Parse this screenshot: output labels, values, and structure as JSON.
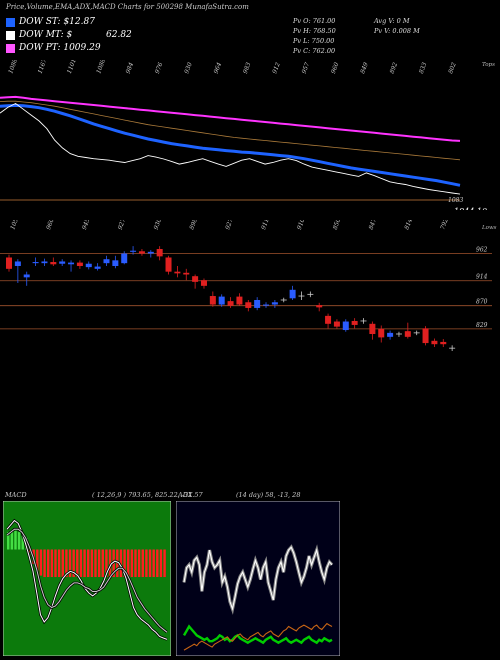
{
  "header": {
    "title": "Price,Volume,EMA,ADX,MACD Charts for 500298 MunafaSutra.com"
  },
  "legend": [
    {
      "label": "DOW ST: $12.87",
      "value": "",
      "color": "#1e63ff"
    },
    {
      "label": "DOW MT: $",
      "value": "62.82",
      "color": "#ffffff"
    },
    {
      "label": "DOW PT: 1009.29",
      "value": "",
      "color": "#ff55ff"
    }
  ],
  "stats": {
    "pv_o": "Pv O: 761.00",
    "pv_h": "Pv H: 768.50",
    "pv_l": "Pv L: 750.00",
    "pv_c": "Pv C: 762.00",
    "avg_v": "Avg V: 0 M",
    "pv_v": "Pv V: 0.008 M"
  },
  "chart_data": [
    {
      "type": "line",
      "name": "EMA panel",
      "side_labels": [
        "Tops",
        "1083",
        "1944.10"
      ],
      "top_labels": [
        "1088",
        "1167",
        "1101",
        "1088",
        "984",
        "976",
        "930",
        "964",
        "983",
        "912",
        "957",
        "960",
        "849",
        "892",
        "833",
        "802"
      ],
      "x": [
        0,
        1,
        2,
        3,
        4,
        5,
        6,
        7,
        8,
        9,
        10,
        11,
        12,
        13,
        14,
        15,
        16,
        17,
        18,
        19,
        20,
        21,
        22,
        23,
        24,
        25,
        26,
        27,
        28,
        29,
        30,
        31,
        32,
        33,
        34,
        35,
        36,
        37,
        38,
        39,
        40,
        41,
        42,
        43,
        44,
        45,
        46,
        47,
        48,
        49,
        50,
        51,
        52,
        53,
        54,
        55,
        56,
        57,
        58,
        59
      ],
      "series": [
        {
          "color": "#ff33ff",
          "values": [
            1120,
            1121,
            1122,
            1120,
            1117,
            1115,
            1113,
            1111,
            1109,
            1107,
            1105,
            1103,
            1101,
            1099,
            1097,
            1095,
            1093,
            1091,
            1089,
            1087,
            1085,
            1083,
            1081,
            1079,
            1077,
            1075,
            1073,
            1071,
            1069,
            1067,
            1065,
            1063,
            1061,
            1059,
            1057,
            1055,
            1053,
            1051,
            1049,
            1047,
            1045,
            1043,
            1041,
            1039,
            1037,
            1035,
            1033,
            1031,
            1029,
            1027,
            1025,
            1023,
            1021,
            1019,
            1017,
            1015,
            1013,
            1011,
            1009,
            1008
          ]
        },
        {
          "color": "#1e63ff",
          "values": [
            1098,
            1099,
            1100,
            1099,
            1097,
            1094,
            1090,
            1085,
            1079,
            1073,
            1066,
            1059,
            1052,
            1046,
            1040,
            1034,
            1028,
            1023,
            1018,
            1013,
            1009,
            1005,
            1001,
            998,
            995,
            992,
            989,
            987,
            985,
            983,
            981,
            979,
            978,
            976,
            974,
            972,
            970,
            968,
            965,
            962,
            958,
            954,
            950,
            946,
            942,
            938,
            935,
            932,
            929,
            926,
            923,
            920,
            917,
            914,
            911,
            908,
            905,
            901,
            897,
            893
          ]
        },
        {
          "color": "#ffffff",
          "values": [
            1080,
            1095,
            1105,
            1090,
            1075,
            1060,
            1040,
            1010,
            990,
            975,
            968,
            965,
            962,
            960,
            958,
            955,
            952,
            957,
            962,
            970,
            966,
            961,
            955,
            948,
            952,
            957,
            962,
            955,
            948,
            942,
            950,
            958,
            962,
            955,
            948,
            952,
            958,
            962,
            957,
            948,
            940,
            936,
            932,
            928,
            924,
            920,
            916,
            925,
            918,
            910,
            902,
            898,
            895,
            890,
            886,
            882,
            879,
            876,
            873,
            870
          ]
        },
        {
          "color": "#aa7a3a",
          "values": [
            1110,
            1111,
            1111,
            1109,
            1107,
            1104,
            1101,
            1098,
            1094,
            1090,
            1086,
            1082,
            1078,
            1074,
            1070,
            1066,
            1062,
            1058,
            1054,
            1050,
            1047,
            1044,
            1041,
            1038,
            1035,
            1032,
            1029,
            1026,
            1023,
            1020,
            1017,
            1015,
            1013,
            1011,
            1009,
            1007,
            1005,
            1003,
            1001,
            999,
            997,
            995,
            993,
            991,
            989,
            987,
            985,
            983,
            981,
            979,
            977,
            975,
            973,
            971,
            969,
            967,
            965,
            963,
            961,
            959
          ]
        }
      ]
    },
    {
      "type": "candlestick",
      "name": "Price panel",
      "side_labels": [
        "Lows"
      ],
      "top_labels": [
        "1052",
        "960",
        "945",
        "927",
        "930",
        "898",
        "927",
        "911",
        "910",
        "850",
        "847",
        "814",
        "792"
      ],
      "levels": [
        962,
        914,
        870,
        829
      ],
      "ylim": [
        760,
        1000
      ],
      "candles": [
        {
          "o": 955,
          "c": 935,
          "h": 960,
          "l": 930
        },
        {
          "o": 940,
          "c": 948,
          "h": 952,
          "l": 910
        },
        {
          "o": 920,
          "c": 925,
          "h": 930,
          "l": 905
        },
        {
          "o": 945,
          "c": 947,
          "h": 955,
          "l": 940
        },
        {
          "o": 945,
          "c": 948,
          "h": 953,
          "l": 940
        },
        {
          "o": 947,
          "c": 943,
          "h": 955,
          "l": 940
        },
        {
          "o": 944,
          "c": 948,
          "h": 952,
          "l": 940
        },
        {
          "o": 943,
          "c": 946,
          "h": 950,
          "l": 930
        },
        {
          "o": 946,
          "c": 940,
          "h": 950,
          "l": 935
        },
        {
          "o": 938,
          "c": 944,
          "h": 948,
          "l": 934
        },
        {
          "o": 935,
          "c": 939,
          "h": 945,
          "l": 932
        },
        {
          "o": 945,
          "c": 952,
          "h": 958,
          "l": 940
        },
        {
          "o": 940,
          "c": 950,
          "h": 958,
          "l": 936
        },
        {
          "o": 945,
          "c": 962,
          "h": 966,
          "l": 943
        },
        {
          "o": 965,
          "c": 967,
          "h": 975,
          "l": 960
        },
        {
          "o": 966,
          "c": 962,
          "h": 970,
          "l": 958
        },
        {
          "o": 962,
          "c": 965,
          "h": 968,
          "l": 955
        },
        {
          "o": 970,
          "c": 957,
          "h": 975,
          "l": 950
        },
        {
          "o": 955,
          "c": 930,
          "h": 958,
          "l": 925
        },
        {
          "o": 930,
          "c": 927,
          "h": 940,
          "l": 920
        },
        {
          "o": 928,
          "c": 925,
          "h": 935,
          "l": 915
        },
        {
          "o": 922,
          "c": 912,
          "h": 925,
          "l": 900
        },
        {
          "o": 915,
          "c": 905,
          "h": 918,
          "l": 900
        },
        {
          "o": 887,
          "c": 872,
          "h": 895,
          "l": 868
        },
        {
          "o": 872,
          "c": 886,
          "h": 890,
          "l": 868
        },
        {
          "o": 878,
          "c": 870,
          "h": 885,
          "l": 866
        },
        {
          "o": 886,
          "c": 872,
          "h": 892,
          "l": 870
        },
        {
          "o": 876,
          "c": 866,
          "h": 880,
          "l": 860
        },
        {
          "o": 866,
          "c": 880,
          "h": 885,
          "l": 862
        },
        {
          "o": 870,
          "c": 872,
          "h": 876,
          "l": 866
        },
        {
          "o": 872,
          "c": 876,
          "h": 880,
          "l": 866
        },
        {
          "o": 880,
          "c": 880,
          "h": 884,
          "l": 876
        },
        {
          "o": 883,
          "c": 898,
          "h": 905,
          "l": 880
        },
        {
          "o": 887,
          "c": 887,
          "h": 895,
          "l": 880
        },
        {
          "o": 890,
          "c": 890,
          "h": 895,
          "l": 885
        },
        {
          "o": 871,
          "c": 867,
          "h": 875,
          "l": 860
        },
        {
          "o": 852,
          "c": 838,
          "h": 856,
          "l": 830
        },
        {
          "o": 842,
          "c": 833,
          "h": 846,
          "l": 830
        },
        {
          "o": 827,
          "c": 842,
          "h": 846,
          "l": 824
        },
        {
          "o": 843,
          "c": 836,
          "h": 848,
          "l": 830
        },
        {
          "o": 843,
          "c": 843,
          "h": 848,
          "l": 838
        },
        {
          "o": 838,
          "c": 820,
          "h": 842,
          "l": 810
        },
        {
          "o": 829,
          "c": 814,
          "h": 835,
          "l": 805
        },
        {
          "o": 815,
          "c": 822,
          "h": 826,
          "l": 810
        },
        {
          "o": 820,
          "c": 820,
          "h": 824,
          "l": 815
        },
        {
          "o": 825,
          "c": 815,
          "h": 840,
          "l": 812
        },
        {
          "o": 822,
          "c": 822,
          "h": 826,
          "l": 818
        },
        {
          "o": 830,
          "c": 804,
          "h": 834,
          "l": 800
        },
        {
          "o": 808,
          "c": 802,
          "h": 812,
          "l": 797
        },
        {
          "o": 806,
          "c": 802,
          "h": 811,
          "l": 797
        },
        {
          "o": 795,
          "c": 795,
          "h": 800,
          "l": 790
        }
      ]
    },
    {
      "type": "area",
      "name": "MACD",
      "label": "MACD",
      "params": "( 12,26,9 ) 793.65, 825.22, -31.57",
      "histogram": [
        12,
        12,
        13,
        12,
        10,
        8,
        -2,
        -10,
        -15,
        -18,
        -19,
        -19,
        -19,
        -19,
        -19,
        -19,
        -19,
        -19,
        -19,
        -19,
        -19,
        -19,
        -19,
        -19,
        -19,
        -19,
        -19,
        -19,
        -19,
        -19,
        -19,
        -19,
        -19,
        -19,
        -19,
        -19,
        -19,
        -19,
        -19,
        -19,
        -19,
        -19,
        -19,
        -19
      ],
      "series": [
        {
          "color": "#ffffff",
          "values": [
            14,
            17,
            20,
            18,
            12,
            4,
            -5,
            -15,
            -30,
            -45,
            -50,
            -47,
            -40,
            -32,
            -25,
            -20,
            -17,
            -15,
            -16,
            -18,
            -22,
            -27,
            -30,
            -32,
            -30,
            -27,
            -22,
            -15,
            -10,
            -8,
            -9,
            -13,
            -20,
            -30,
            -40,
            -45,
            -48,
            -50,
            -52,
            -55,
            -57,
            -60,
            -61,
            -62
          ]
        },
        {
          "color": "#cccccc",
          "values": [
            10,
            12,
            14,
            14,
            12,
            8,
            2,
            -5,
            -14,
            -25,
            -33,
            -38,
            -40,
            -39,
            -36,
            -32,
            -28,
            -25,
            -23,
            -23,
            -24,
            -26,
            -27,
            -29,
            -29,
            -28,
            -26,
            -22,
            -18,
            -15,
            -13,
            -13,
            -16,
            -21,
            -27,
            -33,
            -37,
            -41,
            -44,
            -47,
            -50,
            -53,
            -55,
            -57
          ]
        }
      ]
    },
    {
      "type": "line",
      "name": "ADX",
      "label": "ADX",
      "params": "(14 day) 58, -13, 28",
      "series": [
        {
          "color": "#ffffff",
          "values": [
            48,
            58,
            60,
            55,
            63,
            65,
            60,
            42,
            55,
            60,
            70,
            62,
            58,
            60,
            63,
            48,
            52,
            45,
            35,
            30,
            38,
            47,
            52,
            55,
            50,
            45,
            50,
            57,
            63,
            58,
            50,
            58,
            62,
            48,
            42,
            36,
            50,
            58,
            62,
            55,
            66,
            70,
            72,
            68,
            62,
            55,
            48,
            52,
            58,
            66,
            60,
            65,
            70,
            62,
            55,
            50,
            58,
            62,
            60
          ]
        },
        {
          "color": "#00cc00",
          "values": [
            12,
            15,
            18,
            16,
            14,
            12,
            11,
            10,
            9,
            10,
            8,
            8,
            9,
            10,
            12,
            11,
            9,
            10,
            8,
            9,
            11,
            12,
            10,
            9,
            8,
            7,
            8,
            9,
            10,
            9,
            8,
            7,
            9,
            10,
            11,
            9,
            8,
            7,
            8,
            9,
            10,
            8,
            7,
            8,
            9,
            8,
            7,
            9,
            10,
            11,
            9,
            8,
            7,
            9,
            8,
            10,
            9,
            8,
            9
          ]
        },
        {
          "color": "#c86414",
          "values": [
            2,
            3,
            4,
            5,
            6,
            5,
            7,
            8,
            7,
            6,
            5,
            4,
            6,
            7,
            8,
            9,
            10,
            11,
            9,
            8,
            10,
            12,
            13,
            11,
            10,
            9,
            11,
            12,
            13,
            14,
            12,
            11,
            13,
            14,
            15,
            13,
            12,
            11,
            13,
            15,
            16,
            18,
            17,
            16,
            15,
            17,
            18,
            19,
            18,
            17,
            16,
            18,
            19,
            17,
            16,
            18,
            20,
            19,
            18
          ]
        }
      ]
    }
  ]
}
